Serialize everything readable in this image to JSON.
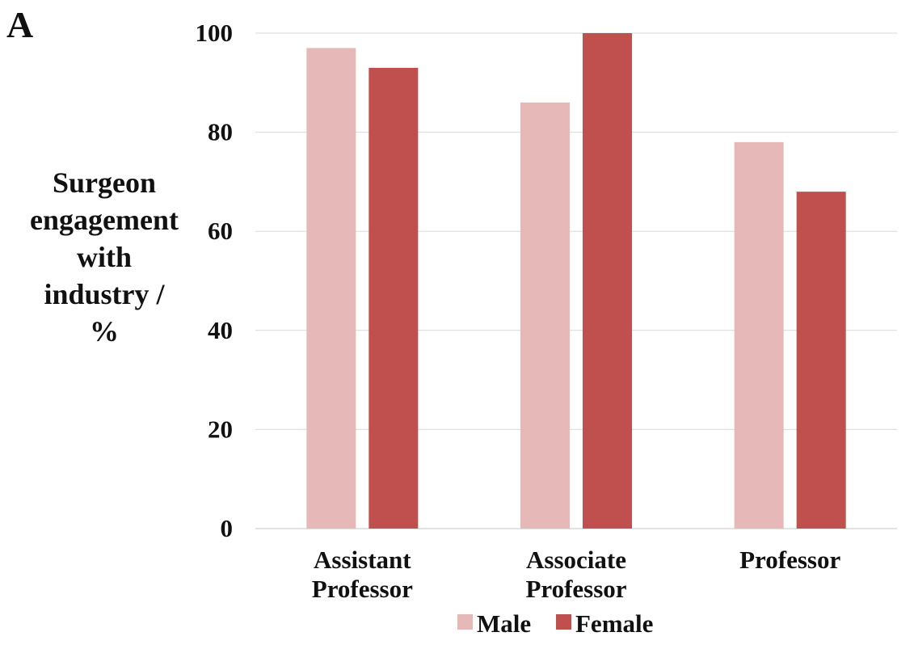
{
  "panel_label": "A",
  "chart_data": {
    "type": "bar",
    "title": "",
    "xlabel": "",
    "ylabel": [
      "Surgeon",
      "engagement",
      "with",
      "industry /",
      "%"
    ],
    "categories": [
      [
        "Assistant",
        "Professor"
      ],
      [
        "Associate",
        "Professor"
      ],
      [
        "Professor"
      ]
    ],
    "series": [
      {
        "name": "Male",
        "values": [
          97,
          86,
          78
        ],
        "color": "#e6b8b7"
      },
      {
        "name": "Female",
        "values": [
          93,
          100,
          68
        ],
        "color": "#c0504d"
      }
    ],
    "ylim": [
      0,
      100
    ],
    "yticks": [
      "0",
      "20",
      "40",
      "60",
      "80",
      "100"
    ],
    "grid": true,
    "legend_position": "bottom"
  }
}
